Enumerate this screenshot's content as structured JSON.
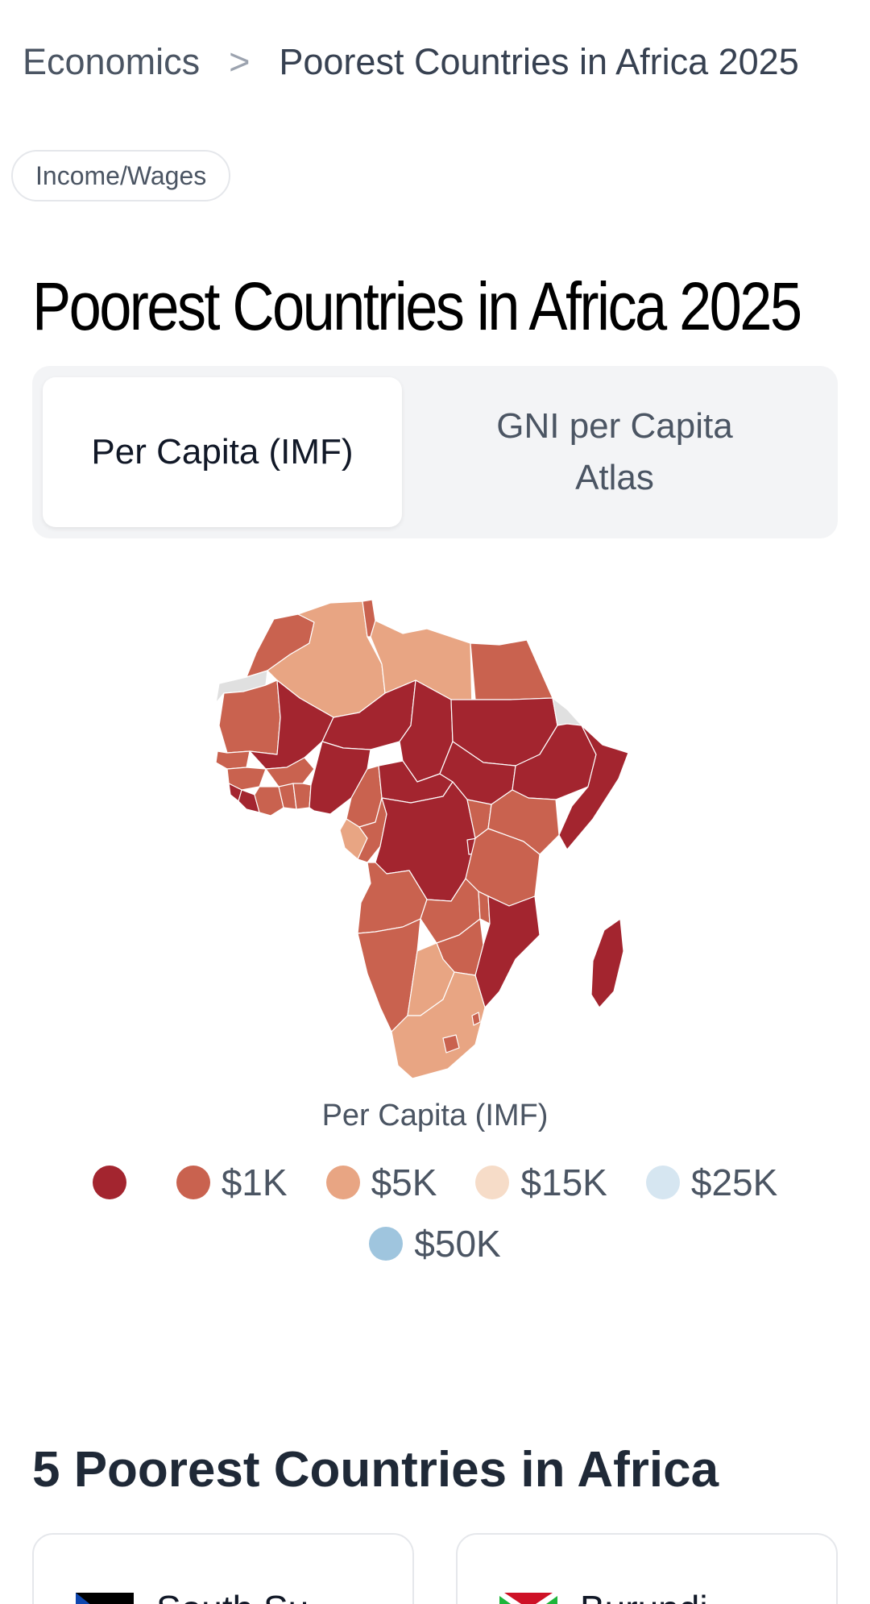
{
  "breadcrumb": {
    "parent": "Economics",
    "separator": ">",
    "current": "Poorest Countries in Africa 2025"
  },
  "tag": "Income/Wages",
  "page_title": "Poorest Countries in Africa 2025",
  "tabs": [
    {
      "label": "Per Capita (IMF)",
      "active": true
    },
    {
      "label": "GNI per Capita Atlas",
      "active": false
    }
  ],
  "map": {
    "legend_title": "Per Capita (IMF)",
    "legend": [
      {
        "label": "",
        "color": "#a3252f"
      },
      {
        "label": "$1K",
        "color": "#c9624f"
      },
      {
        "label": "$5K",
        "color": "#e8a583"
      },
      {
        "label": "$15K",
        "color": "#f6dcc8"
      },
      {
        "label": "$25K",
        "color": "#d6e6f1"
      },
      {
        "label": "$50K",
        "color": "#9fc5de"
      }
    ],
    "no_data_color": "#e0e0e0"
  },
  "section_title": "5 Poorest Countries in Africa",
  "cards": [
    {
      "name": "South Su",
      "flag_icon": "south-sudan-flag-icon"
    },
    {
      "name": "Burundi",
      "flag_icon": "burundi-flag-icon"
    }
  ]
}
